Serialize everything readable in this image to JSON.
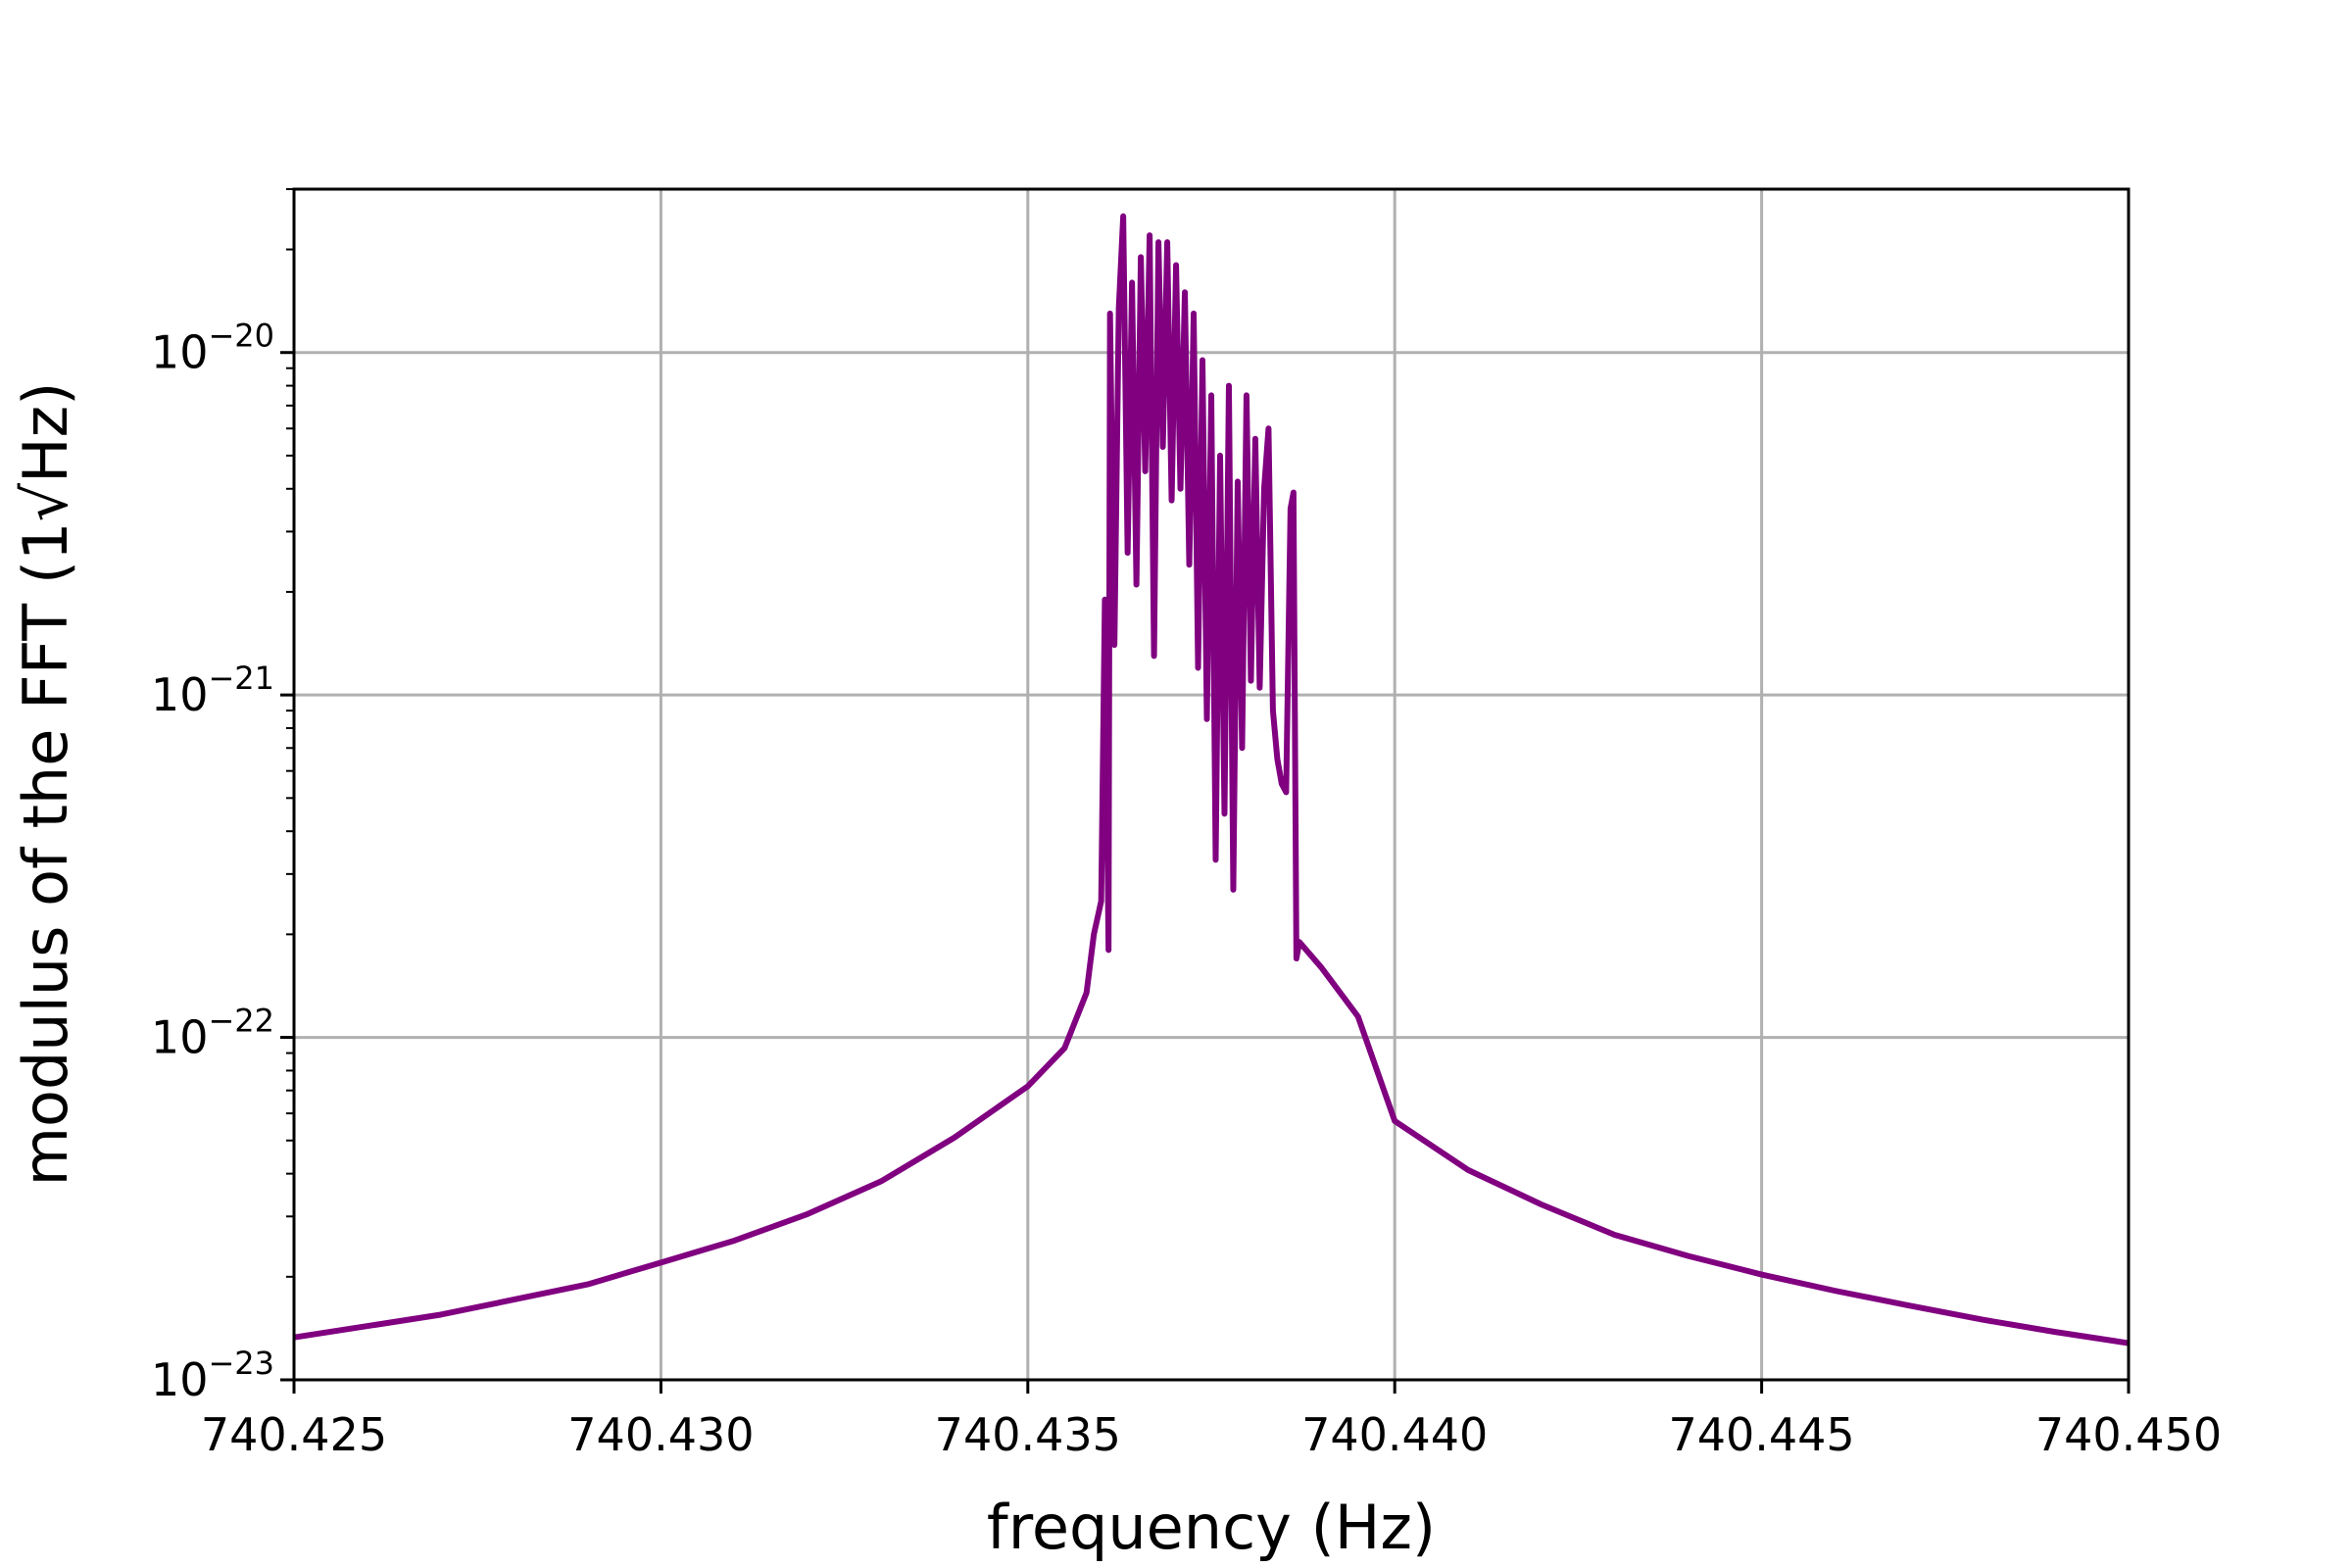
{
  "chart_data": {
    "type": "line",
    "title": "",
    "xlabel": "frequency (Hz)",
    "ylabel": "modulus of the FFT (1√Hz)",
    "xlim": [
      740.425,
      740.45
    ],
    "ylim": [
      1e-23,
      3e-20
    ],
    "yscale": "log",
    "grid": true,
    "x_ticks": [
      {
        "value": 740.425,
        "label": "740.425"
      },
      {
        "value": 740.43,
        "label": "740.430"
      },
      {
        "value": 740.435,
        "label": "740.435"
      },
      {
        "value": 740.44,
        "label": "740.440"
      },
      {
        "value": 740.445,
        "label": "740.445"
      },
      {
        "value": 740.45,
        "label": "740.450"
      }
    ],
    "y_ticks": [
      {
        "value": 1e-23,
        "base": "10",
        "exponent": "−23"
      },
      {
        "value": 1e-22,
        "base": "10",
        "exponent": "−22"
      },
      {
        "value": 1e-21,
        "base": "10",
        "exponent": "−21"
      },
      {
        "value": 1e-20,
        "base": "10",
        "exponent": "−20"
      }
    ],
    "series": [
      {
        "color": "#800080",
        "points": [
          [
            740.425,
            1.33e-23
          ],
          [
            740.427,
            1.55e-23
          ],
          [
            740.429,
            1.9e-23
          ],
          [
            740.43,
            2.2e-23
          ],
          [
            740.431,
            2.55e-23
          ],
          [
            740.432,
            3.05e-23
          ],
          [
            740.433,
            3.8e-23
          ],
          [
            740.434,
            5.1e-23
          ],
          [
            740.435,
            7.2e-23
          ],
          [
            740.4355,
            9.3e-23
          ],
          [
            740.4358,
            1.35e-22
          ],
          [
            740.4359,
            2e-22
          ],
          [
            740.436,
            2.5e-22
          ],
          [
            740.43605,
            1.9e-21
          ],
          [
            740.4361,
            1.8e-22
          ],
          [
            740.43612,
            1.3e-20
          ],
          [
            740.43618,
            1.4e-21
          ],
          [
            740.43624,
            1.35e-20
          ],
          [
            740.4363,
            2.5e-20
          ],
          [
            740.43636,
            2.6e-21
          ],
          [
            740.43642,
            1.6e-20
          ],
          [
            740.43648,
            2.1e-21
          ],
          [
            740.43654,
            1.9e-20
          ],
          [
            740.4366,
            4.5e-21
          ],
          [
            740.43666,
            2.2e-20
          ],
          [
            740.43672,
            1.3e-21
          ],
          [
            740.43678,
            2.1e-20
          ],
          [
            740.43684,
            5.3e-21
          ],
          [
            740.4369,
            2.1e-20
          ],
          [
            740.43696,
            3.7e-21
          ],
          [
            740.43702,
            1.8e-20
          ],
          [
            740.43708,
            4e-21
          ],
          [
            740.43714,
            1.5e-20
          ],
          [
            740.4372,
            2.4e-21
          ],
          [
            740.43726,
            1.3e-20
          ],
          [
            740.43732,
            1.2e-21
          ],
          [
            740.43738,
            9.5e-21
          ],
          [
            740.43744,
            8.5e-22
          ],
          [
            740.4375,
            7.5e-21
          ],
          [
            740.43756,
            3.3e-22
          ],
          [
            740.43762,
            5e-21
          ],
          [
            740.43768,
            4.5e-22
          ],
          [
            740.43774,
            8e-21
          ],
          [
            740.4378,
            2.7e-22
          ],
          [
            740.43786,
            4.2e-21
          ],
          [
            740.43792,
            7e-22
          ],
          [
            740.43798,
            7.5e-21
          ],
          [
            740.43804,
            1.1e-21
          ],
          [
            740.4381,
            5.6e-21
          ],
          [
            740.43816,
            1.05e-21
          ],
          [
            740.43822,
            4e-21
          ],
          [
            740.43828,
            6e-21
          ],
          [
            740.43834,
            9e-22
          ],
          [
            740.4384,
            6.5e-22
          ],
          [
            740.43846,
            5.5e-22
          ],
          [
            740.43852,
            5.2e-22
          ],
          [
            740.43858,
            3.5e-21
          ],
          [
            740.43862,
            3.9e-21
          ],
          [
            740.43866,
            1.7e-22
          ],
          [
            740.4387,
            1.9e-22
          ],
          [
            740.439,
            1.6e-22
          ],
          [
            740.4395,
            1.15e-22
          ],
          [
            740.44,
            5.7e-23
          ],
          [
            740.441,
            4.1e-23
          ],
          [
            740.442,
            3.25e-23
          ],
          [
            740.443,
            2.65e-23
          ],
          [
            740.444,
            2.3e-23
          ],
          [
            740.445,
            2.03e-23
          ],
          [
            740.446,
            1.82e-23
          ],
          [
            740.447,
            1.65e-23
          ],
          [
            740.448,
            1.5e-23
          ],
          [
            740.449,
            1.38e-23
          ],
          [
            740.45,
            1.28e-23
          ]
        ]
      }
    ]
  }
}
